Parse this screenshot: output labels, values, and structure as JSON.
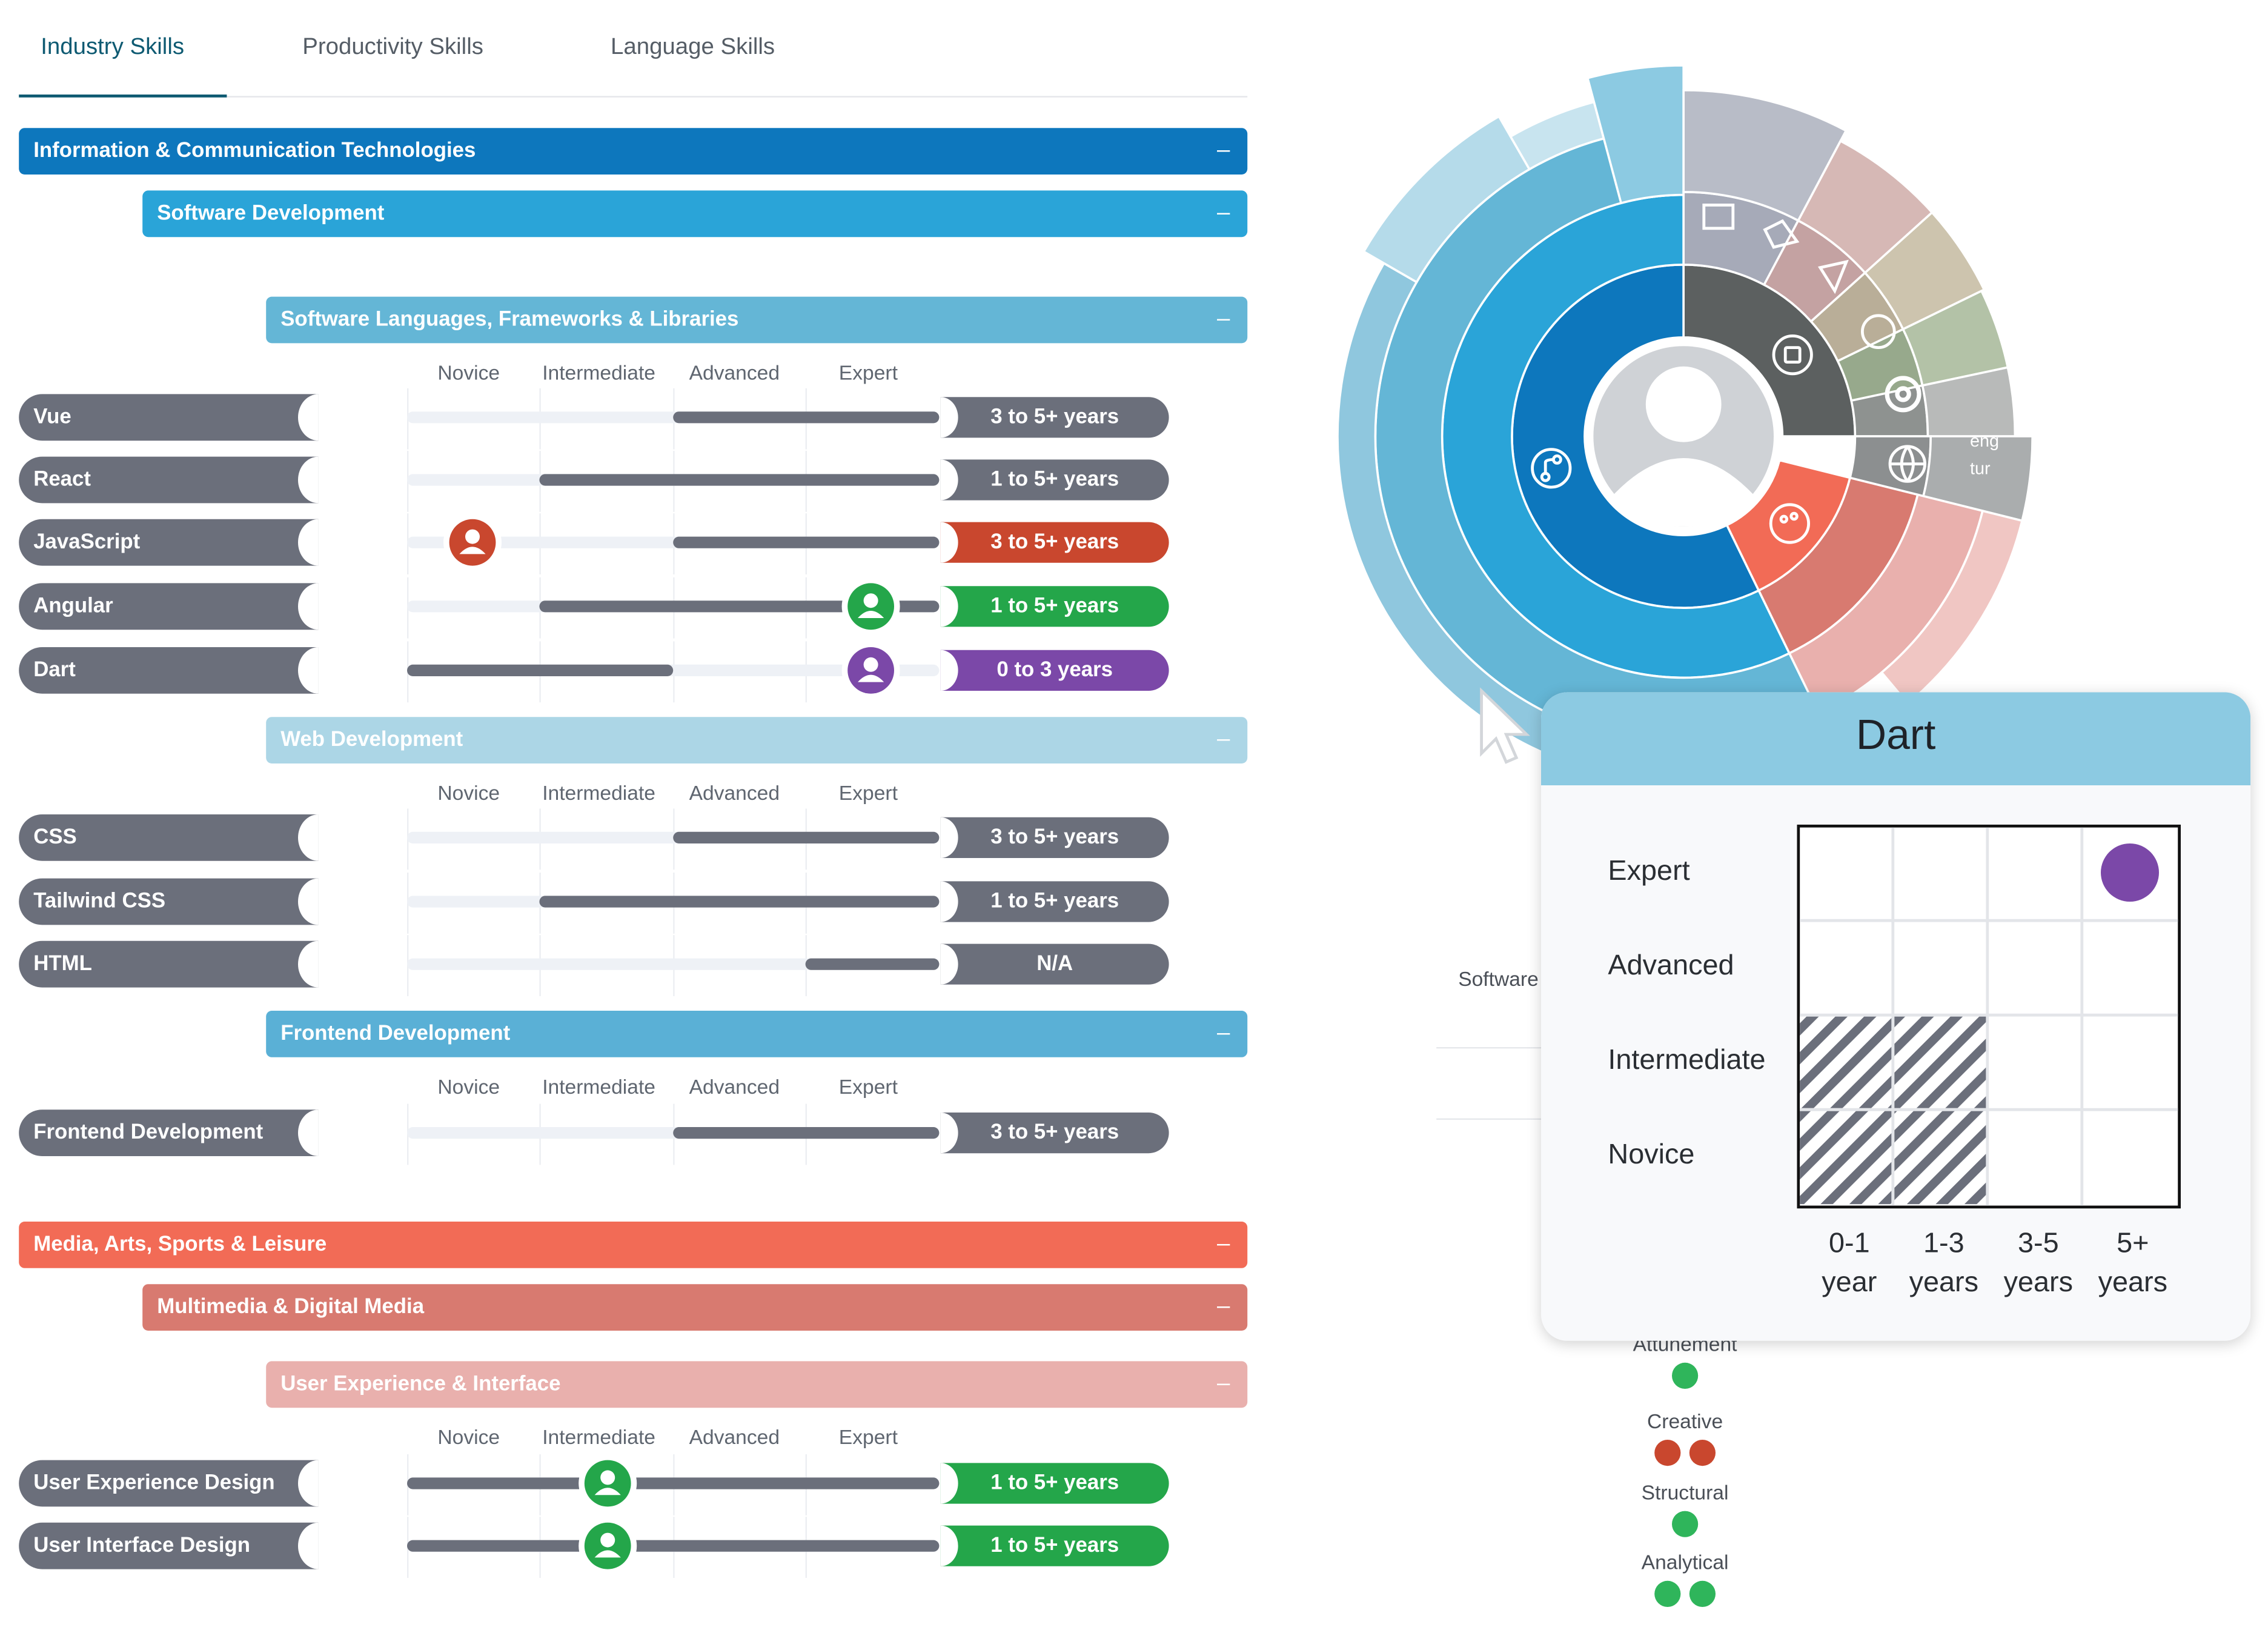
{
  "tabs": [
    {
      "label": "Industry Skills",
      "active": true
    },
    {
      "label": "Productivity Skills",
      "active": false
    },
    {
      "label": "Language Skills",
      "active": false
    }
  ],
  "categories": {
    "ict": "Information & Communication Technologies",
    "software_dev": "Software Development",
    "languages_frameworks": "Software Languages, Frameworks & Libraries",
    "web_dev": "Web Development",
    "frontend_dev": "Frontend Development",
    "media_arts": "Media, Arts, Sports & Leisure",
    "multimedia": "Multimedia & Digital Media",
    "ux_ui": "User Experience & Interface",
    "collapse_symbol": "–"
  },
  "levels": [
    "Novice",
    "Intermediate",
    "Advanced",
    "Expert"
  ],
  "skills_languages": [
    {
      "name": "Vue",
      "years": "3 to 5+ years",
      "from_level": 3,
      "to_level": 4,
      "marker": "",
      "pill_color": "#6b6f7b"
    },
    {
      "name": "React",
      "years": "1 to 5+ years",
      "from_level": 2,
      "to_level": 4,
      "marker": "",
      "pill_color": "#6b6f7b"
    },
    {
      "name": "JavaScript",
      "years": "3 to 5+ years",
      "from_level": 3,
      "to_level": 4,
      "marker": "novice",
      "pill_color": "#c9472e"
    },
    {
      "name": "Angular",
      "years": "1 to 5+ years",
      "from_level": 2,
      "to_level": 4,
      "marker": "expert",
      "pill_color": "#24a64a"
    },
    {
      "name": "Dart",
      "years": "0 to 3 years",
      "from_level": 1,
      "to_level": 2,
      "marker": "expert",
      "pill_color": "#7b48a8"
    }
  ],
  "skills_web": [
    {
      "name": "CSS",
      "years": "3 to 5+ years",
      "from_level": 3,
      "to_level": 4,
      "pill_color": "#6b6f7b"
    },
    {
      "name": "Tailwind CSS",
      "years": "1 to 5+ years",
      "from_level": 2,
      "to_level": 4,
      "pill_color": "#6b6f7b"
    },
    {
      "name": "HTML",
      "years": "N/A",
      "from_level": 4,
      "to_level": 4,
      "pill_color": "#6b6f7b"
    }
  ],
  "skills_frontend": [
    {
      "name": "Frontend Development",
      "years": "3 to 5+ years",
      "from_level": 3,
      "to_level": 4,
      "pill_color": "#6b6f7b"
    }
  ],
  "skills_ux": [
    {
      "name": "User Experience Design",
      "years": "1 to 5+ years",
      "from_level": 1,
      "to_level": 4,
      "marker": "intermediate",
      "pill_color": "#24a64a"
    },
    {
      "name": "User Interface Design",
      "years": "1 to 5+ years",
      "from_level": 1,
      "to_level": 4,
      "marker": "intermediate",
      "pill_color": "#24a64a"
    }
  ],
  "sunburst": {
    "language_labels": [
      "eng",
      "tur"
    ],
    "side_label": "Software"
  },
  "popup": {
    "title": "Dart",
    "levels": [
      "Expert",
      "Advanced",
      "Intermediate",
      "Novice"
    ],
    "years": [
      [
        "0-1",
        "year"
      ],
      [
        "1-3",
        "years"
      ],
      [
        "3-5",
        "years"
      ],
      [
        "5+",
        "years"
      ]
    ],
    "marker_level": "Expert",
    "marker_year": "5+",
    "marker_color": "#7b48a8"
  },
  "competencies": [
    {
      "label": "Attunement",
      "dots": [
        "#2fb55b"
      ]
    },
    {
      "label": "Creative",
      "dots": [
        "#c9472e",
        "#c9472e"
      ]
    },
    {
      "label": "Structural",
      "dots": [
        "#2fb55b"
      ]
    },
    {
      "label": "Analytical",
      "dots": [
        "#2fb55b",
        "#2fb55b"
      ]
    }
  ],
  "colors": {
    "ict": "#0d77bd",
    "software_dev": "#2aa4d8",
    "languages_frameworks": "#64b6d6",
    "web_dev": "#acd6e6",
    "frontend_dev": "#5ab0d6",
    "media_arts": "#f26b56",
    "multimedia": "#d87a70",
    "ux_ui": "#e9b0ad"
  }
}
